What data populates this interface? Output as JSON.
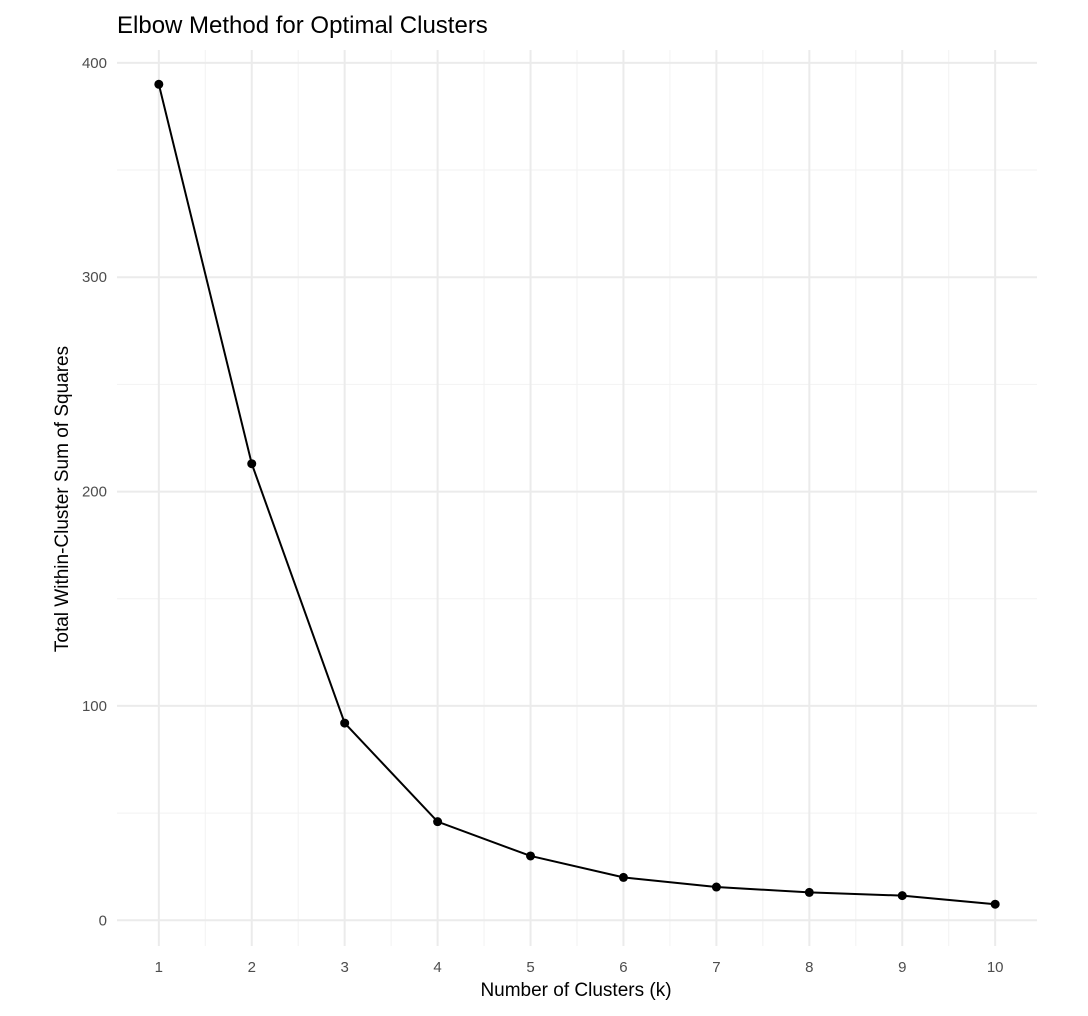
{
  "chart_data": {
    "type": "line",
    "title": "Elbow Method for Optimal Clusters",
    "xlabel": "Number of Clusters (k)",
    "ylabel": "Total Within-Cluster Sum of Squares",
    "x": [
      1,
      2,
      3,
      4,
      5,
      6,
      7,
      8,
      9,
      10
    ],
    "series": [
      {
        "values": [
          390,
          213,
          92,
          46,
          30,
          20,
          15.5,
          13,
          11.5,
          7.5
        ]
      }
    ],
    "xlim": [
      0.55,
      10.45
    ],
    "ylim": [
      -12,
      406
    ],
    "x_ticks": [
      1,
      2,
      3,
      4,
      5,
      6,
      7,
      8,
      9,
      10
    ],
    "y_ticks": [
      0,
      100,
      200,
      300,
      400
    ],
    "grid": true,
    "legend": "none",
    "colors": {
      "line": "#000000",
      "point": "#000000",
      "grid_major": "#ebebeb",
      "grid_minor": "#f2f2f2",
      "tick_text": "#4d4d4d",
      "background": "#ffffff"
    }
  }
}
